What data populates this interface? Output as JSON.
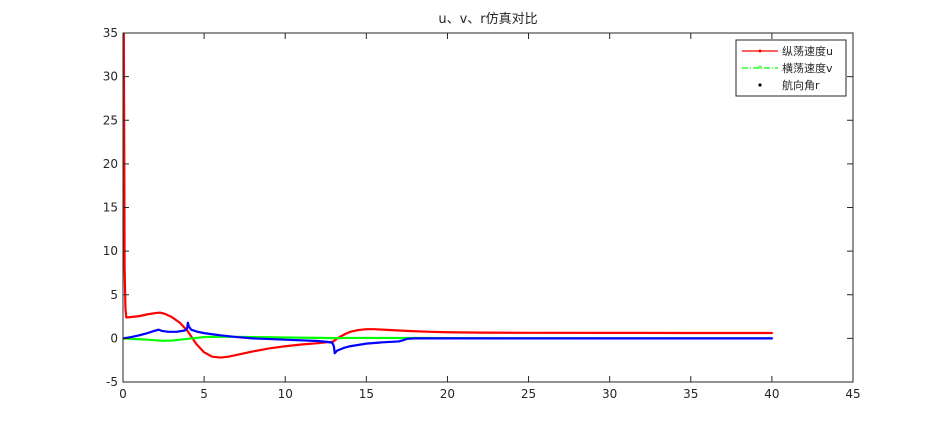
{
  "chart_data": {
    "type": "line",
    "title": "u、v、r仿真对比",
    "xlabel": "",
    "ylabel": "",
    "xlim": [
      0,
      45
    ],
    "ylim": [
      -5,
      35
    ],
    "xticks": [
      0,
      5,
      10,
      15,
      20,
      25,
      30,
      35,
      40,
      45
    ],
    "yticks": [
      -5,
      0,
      5,
      10,
      15,
      20,
      25,
      30,
      35
    ],
    "grid": false,
    "legend_position": "top-right",
    "series": [
      {
        "name": "纵荡速度u",
        "color": "#ff0000",
        "marker": "point",
        "x": [
          0,
          0.02,
          0.05,
          0.08,
          0.1,
          0.15,
          0.2,
          0.5,
          1.0,
          1.5,
          2.0,
          2.3,
          2.6,
          3.0,
          3.5,
          4.0,
          4.5,
          5.0,
          5.5,
          6.0,
          6.5,
          7.0,
          8.0,
          9.0,
          10.0,
          11.0,
          12.0,
          12.5,
          12.9,
          13.0,
          13.3,
          13.7,
          14.0,
          14.5,
          15.0,
          15.5,
          16.0,
          17.0,
          18.0,
          19.0,
          20.0,
          22.0,
          25.0,
          30.0,
          35.0,
          40.0
        ],
        "y": [
          8.0,
          35.0,
          35.0,
          20.0,
          8.0,
          3.5,
          2.4,
          2.45,
          2.55,
          2.75,
          2.9,
          2.95,
          2.8,
          2.45,
          1.8,
          0.8,
          -0.6,
          -1.6,
          -2.1,
          -2.2,
          -2.1,
          -1.9,
          -1.5,
          -1.15,
          -0.9,
          -0.7,
          -0.55,
          -0.45,
          -0.4,
          -0.3,
          0.1,
          0.5,
          0.75,
          0.95,
          1.05,
          1.05,
          1.0,
          0.9,
          0.82,
          0.75,
          0.7,
          0.66,
          0.64,
          0.63,
          0.62,
          0.62
        ]
      },
      {
        "name": "横荡速度v",
        "color": "#00ff00",
        "marker": "star",
        "x": [
          0,
          0.5,
          1.0,
          1.5,
          2.0,
          2.5,
          3.0,
          3.5,
          4.0,
          4.5,
          5.0,
          6.0,
          7.0,
          8.0,
          10.0,
          12.0,
          13.0,
          14.0,
          16.0,
          18.0,
          20.0,
          25.0,
          30.0,
          35.0,
          40.0
        ],
        "y": [
          0,
          -0.05,
          -0.1,
          -0.15,
          -0.22,
          -0.28,
          -0.25,
          -0.15,
          -0.05,
          0.05,
          0.15,
          0.2,
          0.18,
          0.15,
          0.1,
          0.06,
          0.03,
          0.05,
          0.05,
          0.04,
          0.03,
          0.02,
          0.01,
          0.01,
          0.0
        ]
      },
      {
        "name": "航向角r",
        "color": "#0000ff",
        "marker": "dot",
        "x": [
          0,
          0.5,
          1.0,
          1.5,
          2.0,
          2.2,
          2.4,
          2.8,
          3.3,
          3.8,
          3.95,
          4.0,
          4.05,
          4.2,
          4.6,
          5.0,
          6.0,
          7.0,
          8.0,
          10.0,
          12.0,
          12.6,
          12.9,
          13.0,
          13.05,
          13.2,
          13.6,
          14.0,
          15.0,
          16.0,
          17.0,
          17.3,
          17.5,
          18.0,
          20.0,
          25.0,
          30.0,
          35.0,
          40.0
        ],
        "y": [
          0,
          0.15,
          0.35,
          0.6,
          0.9,
          1.0,
          0.85,
          0.75,
          0.75,
          0.9,
          1.1,
          1.8,
          1.4,
          1.0,
          0.75,
          0.6,
          0.35,
          0.15,
          0.0,
          -0.15,
          -0.3,
          -0.4,
          -0.5,
          -0.9,
          -1.7,
          -1.4,
          -1.1,
          -0.9,
          -0.6,
          -0.45,
          -0.35,
          -0.2,
          -0.05,
          0.0,
          0.0,
          0.0,
          0.0,
          0.0,
          0.0
        ]
      }
    ]
  }
}
